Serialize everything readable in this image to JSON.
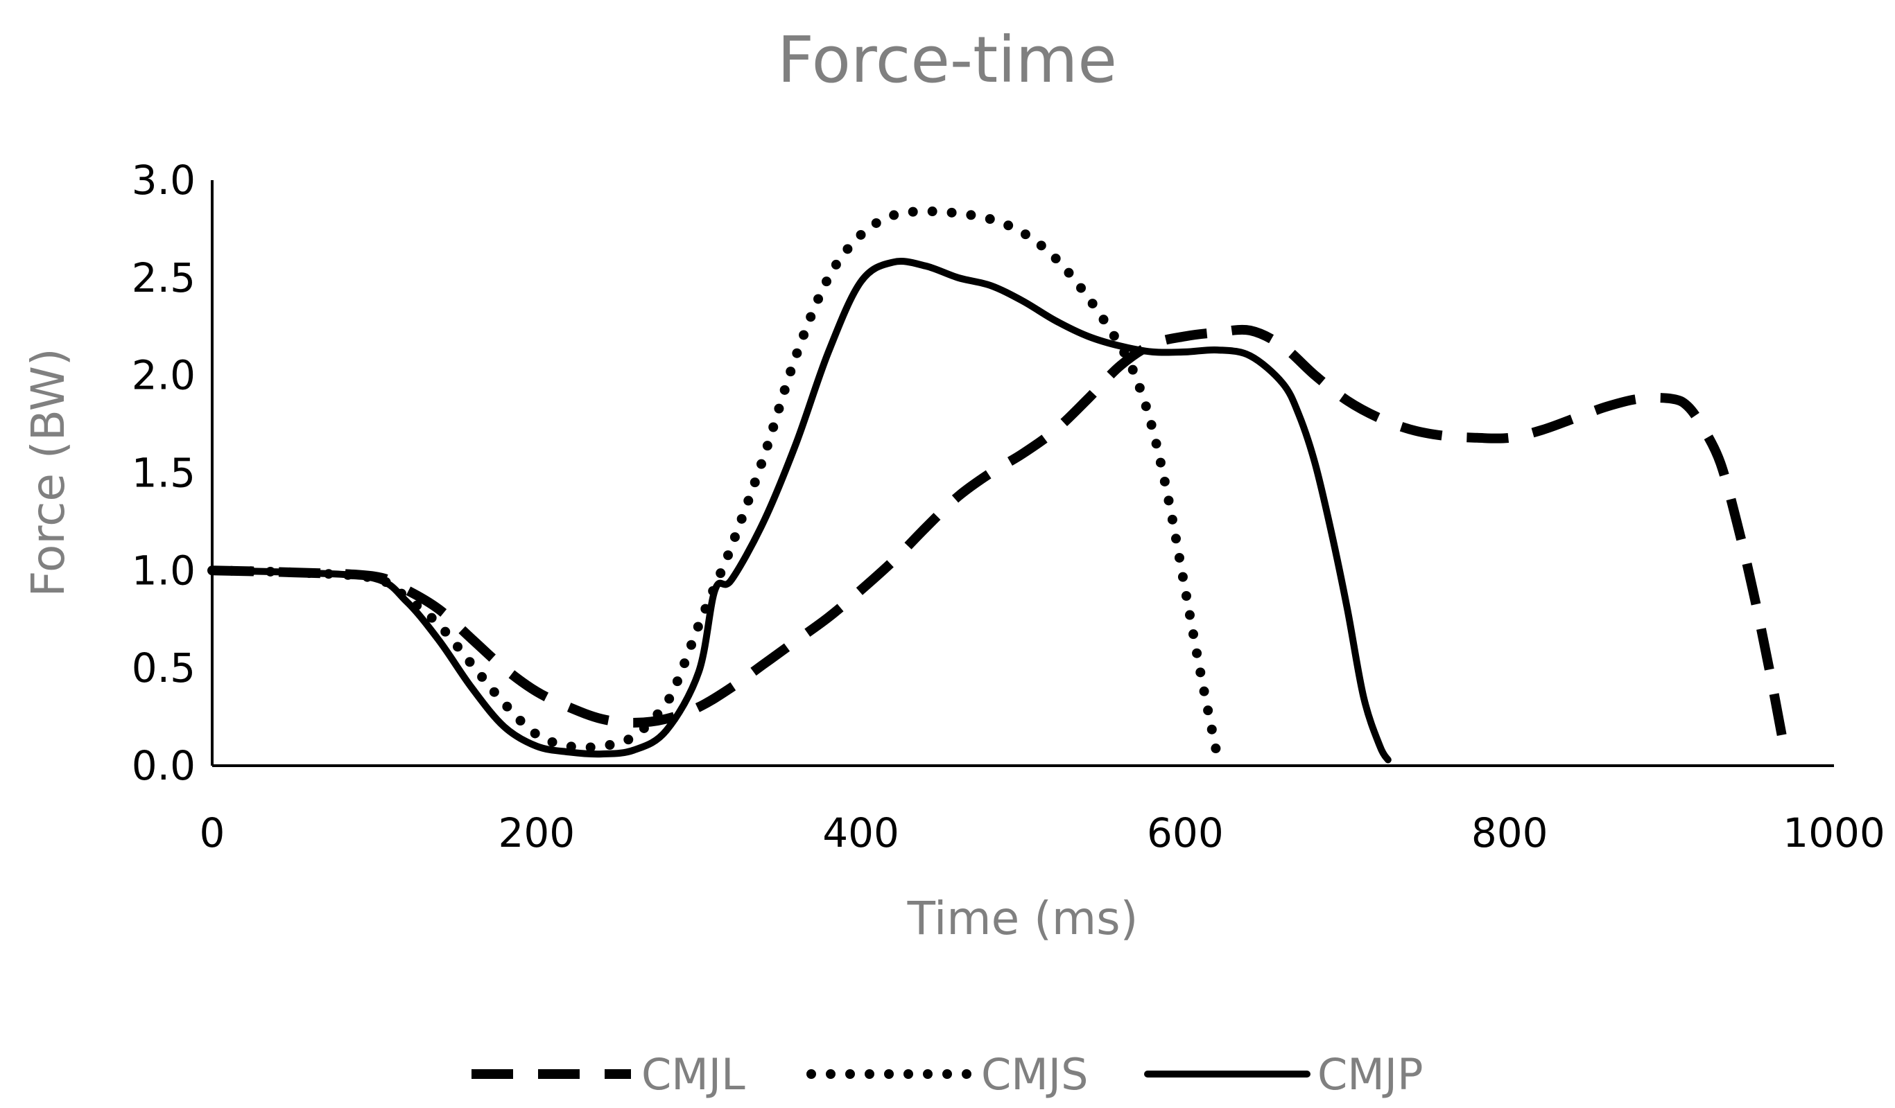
{
  "chart_data": {
    "type": "line",
    "title": "Force-time",
    "xlabel": "Time (ms)",
    "ylabel": "Force (BW)",
    "xlim": [
      0,
      1000
    ],
    "ylim": [
      0,
      3.0
    ],
    "x_ticks": [
      0,
      200,
      400,
      600,
      800,
      1000
    ],
    "y_ticks": [
      0.0,
      0.5,
      1.0,
      1.5,
      2.0,
      2.5,
      3.0
    ],
    "x_tick_labels": [
      "0",
      "200",
      "400",
      "600",
      "800",
      "1000"
    ],
    "y_tick_labels": [
      "0.0",
      "0.5",
      "1.0",
      "1.5",
      "2.0",
      "2.5",
      "3.0"
    ],
    "grid": false,
    "legend_position": "bottom",
    "series": [
      {
        "name": "CMJL",
        "style": "dashed",
        "x": [
          0,
          50,
          100,
          120,
          140,
          160,
          180,
          200,
          220,
          240,
          260,
          280,
          300,
          320,
          340,
          360,
          380,
          400,
          420,
          440,
          460,
          480,
          500,
          520,
          540,
          560,
          580,
          600,
          620,
          640,
          660,
          680,
          700,
          720,
          740,
          760,
          780,
          800,
          820,
          840,
          860,
          880,
          900,
          910,
          920,
          930,
          940,
          950,
          960,
          970
        ],
        "y": [
          1.0,
          0.99,
          0.97,
          0.9,
          0.8,
          0.65,
          0.5,
          0.38,
          0.3,
          0.24,
          0.22,
          0.24,
          0.3,
          0.4,
          0.52,
          0.64,
          0.76,
          0.9,
          1.05,
          1.22,
          1.38,
          1.5,
          1.6,
          1.72,
          1.88,
          2.05,
          2.16,
          2.2,
          2.22,
          2.23,
          2.15,
          2.0,
          1.87,
          1.78,
          1.72,
          1.69,
          1.68,
          1.68,
          1.72,
          1.78,
          1.84,
          1.88,
          1.88,
          1.84,
          1.72,
          1.55,
          1.25,
          0.9,
          0.5,
          0.06
        ]
      },
      {
        "name": "CMJS",
        "style": "dotted",
        "x": [
          0,
          50,
          100,
          120,
          140,
          160,
          180,
          200,
          220,
          240,
          260,
          280,
          290,
          300,
          310,
          320,
          340,
          360,
          380,
          400,
          420,
          440,
          460,
          480,
          500,
          520,
          540,
          560,
          570,
          580,
          590,
          600,
          610,
          620
        ],
        "y": [
          1.0,
          0.99,
          0.96,
          0.86,
          0.72,
          0.52,
          0.32,
          0.16,
          0.1,
          0.1,
          0.15,
          0.32,
          0.5,
          0.72,
          0.92,
          1.12,
          1.58,
          2.1,
          2.5,
          2.72,
          2.82,
          2.84,
          2.83,
          2.8,
          2.73,
          2.6,
          2.4,
          2.15,
          1.98,
          1.72,
          1.35,
          0.9,
          0.45,
          0.04
        ]
      },
      {
        "name": "CMJP",
        "style": "solid",
        "x": [
          0,
          50,
          100,
          120,
          140,
          160,
          180,
          200,
          220,
          240,
          260,
          280,
          300,
          310,
          320,
          340,
          360,
          380,
          400,
          420,
          440,
          460,
          480,
          500,
          520,
          540,
          560,
          580,
          600,
          620,
          640,
          660,
          670,
          680,
          690,
          700,
          710,
          720,
          725
        ],
        "y": [
          1.0,
          0.99,
          0.96,
          0.84,
          0.64,
          0.4,
          0.2,
          0.1,
          0.07,
          0.06,
          0.08,
          0.18,
          0.48,
          0.9,
          0.95,
          1.25,
          1.65,
          2.12,
          2.48,
          2.58,
          2.56,
          2.5,
          2.46,
          2.38,
          2.28,
          2.2,
          2.15,
          2.12,
          2.12,
          2.13,
          2.1,
          1.96,
          1.8,
          1.55,
          1.2,
          0.8,
          0.35,
          0.1,
          0.03
        ]
      }
    ]
  }
}
